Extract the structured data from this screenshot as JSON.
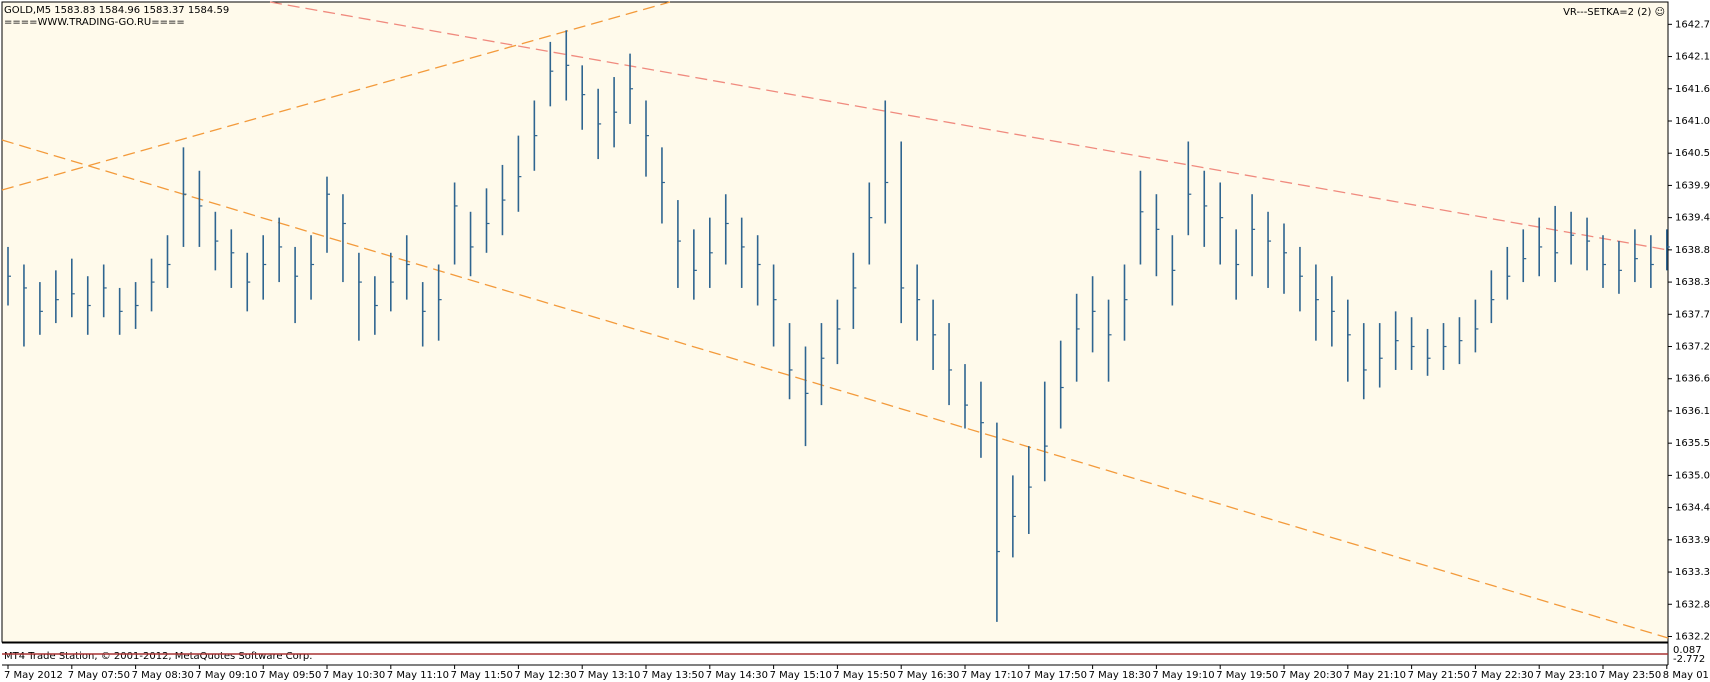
{
  "header": {
    "symbol_line": "GOLD,M5  1583.83 1584.96 1583.37 1584.59",
    "site": "====WWW.TRADING-GO.RU====",
    "indicator": "VR---SETKA=2 (2) ☺"
  },
  "footer": {
    "copyright": "MT4 Trade Station, © 2001-2012, MetaQuotes Software Corp.",
    "sub_top": "0.087",
    "sub_bottom": "-2.772"
  },
  "chart_data": {
    "type": "ohlc",
    "color": "#2f6590",
    "categories": [
      "7 May 2012",
      null,
      null,
      null,
      "7 May 07:50",
      null,
      null,
      null,
      "7 May 08:30",
      null,
      null,
      null,
      "7 May 09:10",
      null,
      null,
      null,
      "7 May 09:50",
      null,
      null,
      null,
      "7 May 10:30",
      null,
      null,
      null,
      "7 May 11:10",
      null,
      null,
      null,
      "7 May 11:50",
      null,
      null,
      null,
      "7 May 12:30",
      null,
      null,
      null,
      "7 May 13:10",
      null,
      null,
      null,
      "7 May 13:50",
      null,
      null,
      null,
      "7 May 14:30",
      null,
      null,
      null,
      "7 May 15:10",
      null,
      null,
      null,
      "7 May 15:50",
      null,
      null,
      null,
      "7 May 16:30",
      null,
      null,
      null,
      "7 May 17:10",
      null,
      null,
      null,
      "7 May 17:50",
      null,
      null,
      null,
      "7 May 18:30",
      null,
      null,
      null,
      "7 May 19:10",
      null,
      null,
      null,
      "7 May 19:50",
      null,
      null,
      null,
      "7 May 20:30",
      null,
      null,
      null,
      "7 May 21:10",
      null,
      null,
      null,
      "7 May 21:50",
      null,
      null,
      null,
      "7 May 22:30",
      null,
      null,
      null,
      "7 May 23:10",
      null,
      null,
      null,
      "7 May 23:50",
      null,
      null,
      null,
      "8 May 01:"
    ],
    "high": [
      1638.9,
      1638.6,
      1638.3,
      1638.5,
      1638.7,
      1638.4,
      1638.6,
      1638.2,
      1638.3,
      1638.7,
      1639.1,
      1640.6,
      1640.2,
      1639.5,
      1639.2,
      1638.8,
      1639.1,
      1639.4,
      1638.9,
      1639.1,
      1640.1,
      1639.8,
      1638.8,
      1638.4,
      1638.8,
      1639.1,
      1638.3,
      1638.6,
      1640.0,
      1639.5,
      1639.9,
      1640.3,
      1640.8,
      1641.4,
      1642.4,
      1642.6,
      1642.0,
      1641.6,
      1641.8,
      1642.2,
      1641.4,
      1640.6,
      1639.7,
      1639.2,
      1639.4,
      1639.8,
      1639.4,
      1639.1,
      1638.6,
      1637.6,
      1637.2,
      1637.6,
      1638.0,
      1638.8,
      1640.0,
      1641.4,
      1640.7,
      1638.6,
      1638.0,
      1637.6,
      1636.9,
      1636.6,
      1635.9,
      1635.0,
      1635.5,
      1636.6,
      1637.3,
      1638.1,
      1638.4,
      1638.0,
      1638.6,
      1640.2,
      1639.8,
      1639.1,
      1640.7,
      1640.2,
      1640.0,
      1639.2,
      1639.8,
      1639.5,
      1639.3,
      1638.9,
      1638.6,
      1638.4,
      1638.0,
      1637.6,
      1637.6,
      1637.8,
      1637.7,
      1637.5,
      1637.6,
      1637.7,
      1638.0,
      1638.5,
      1638.9,
      1639.2,
      1639.4,
      1639.6,
      1639.5,
      1639.4,
      1639.1,
      1639.0,
      1639.2,
      1639.1,
      1639.2
    ],
    "low": [
      1637.9,
      1637.2,
      1637.4,
      1637.6,
      1637.7,
      1637.4,
      1637.7,
      1637.4,
      1637.5,
      1637.8,
      1638.2,
      1638.9,
      1638.9,
      1638.5,
      1638.2,
      1637.8,
      1638.0,
      1638.3,
      1637.6,
      1638.0,
      1638.8,
      1638.3,
      1637.3,
      1637.4,
      1637.8,
      1638.0,
      1637.2,
      1637.3,
      1638.6,
      1638.4,
      1638.8,
      1639.1,
      1639.5,
      1640.2,
      1641.3,
      1641.4,
      1640.9,
      1640.4,
      1640.6,
      1641.0,
      1640.1,
      1639.3,
      1638.2,
      1638.0,
      1638.2,
      1638.6,
      1638.2,
      1637.9,
      1637.2,
      1636.3,
      1635.5,
      1636.2,
      1636.9,
      1637.5,
      1638.6,
      1639.3,
      1637.6,
      1637.3,
      1636.8,
      1636.2,
      1635.8,
      1635.3,
      1632.5,
      1633.6,
      1634.0,
      1634.9,
      1635.8,
      1636.6,
      1637.1,
      1636.6,
      1637.3,
      1638.6,
      1638.4,
      1637.9,
      1639.1,
      1638.9,
      1638.6,
      1638.0,
      1638.4,
      1638.2,
      1638.1,
      1637.8,
      1637.3,
      1637.2,
      1636.6,
      1636.3,
      1636.5,
      1636.8,
      1636.8,
      1636.7,
      1636.8,
      1636.9,
      1637.1,
      1637.6,
      1638.0,
      1638.3,
      1638.4,
      1638.3,
      1638.6,
      1638.5,
      1638.2,
      1638.1,
      1638.3,
      1638.2,
      1638.5
    ],
    "close": [
      1638.4,
      1638.2,
      1637.8,
      1638.0,
      1638.1,
      1637.9,
      1638.2,
      1637.8,
      1637.9,
      1638.3,
      1638.6,
      1639.8,
      1639.6,
      1639.0,
      1638.8,
      1638.3,
      1638.6,
      1638.9,
      1638.4,
      1638.6,
      1639.8,
      1639.3,
      1638.3,
      1637.9,
      1638.3,
      1638.6,
      1637.8,
      1638.0,
      1639.6,
      1638.9,
      1639.3,
      1639.7,
      1640.1,
      1640.8,
      1641.9,
      1642.0,
      1641.5,
      1641.0,
      1641.2,
      1641.6,
      1640.8,
      1640.0,
      1639.0,
      1638.5,
      1638.8,
      1639.3,
      1638.9,
      1638.6,
      1638.0,
      1636.8,
      1636.4,
      1637.0,
      1637.5,
      1638.2,
      1639.4,
      1640.0,
      1638.2,
      1638.0,
      1637.4,
      1636.8,
      1636.2,
      1635.9,
      1633.7,
      1634.3,
      1634.8,
      1635.5,
      1636.5,
      1637.5,
      1637.8,
      1637.4,
      1638.0,
      1639.5,
      1639.2,
      1638.5,
      1639.8,
      1639.6,
      1639.4,
      1638.6,
      1639.2,
      1639.0,
      1638.8,
      1638.4,
      1638.0,
      1637.8,
      1637.4,
      1636.8,
      1637.0,
      1637.3,
      1637.2,
      1637.0,
      1637.2,
      1637.3,
      1637.5,
      1638.0,
      1638.4,
      1638.7,
      1638.9,
      1638.8,
      1639.1,
      1639.0,
      1638.6,
      1638.5,
      1638.7,
      1638.6,
      1638.9
    ],
    "ylim": [
      1632.19,
      1643.03
    ],
    "yticks": [
      {
        "value": 1642.7,
        "label": "1642.70"
      },
      {
        "value": 1642.15,
        "label": "1642.15"
      },
      {
        "value": 1641.6,
        "label": "1641.60"
      },
      {
        "value": 1641.05,
        "label": "1641.05"
      },
      {
        "value": 1640.5,
        "label": "1640.50"
      },
      {
        "value": 1639.95,
        "label": "1639.95"
      },
      {
        "value": 1639.4,
        "label": "1639.40"
      },
      {
        "value": 1638.85,
        "label": "1638.85"
      },
      {
        "value": 1638.3,
        "label": "1638.30"
      },
      {
        "value": 1637.75,
        "label": "1637.75"
      },
      {
        "value": 1637.2,
        "label": "1637.20"
      },
      {
        "value": 1636.65,
        "label": "1636.65"
      },
      {
        "value": 1636.1,
        "label": "1636.10"
      },
      {
        "value": 1635.55,
        "label": "1635.55"
      },
      {
        "value": 1635,
        "label": "1635.00"
      },
      {
        "value": 1634.45,
        "label": "1634.45"
      },
      {
        "value": 1633.9,
        "label": "1633.90"
      },
      {
        "value": 1633.35,
        "label": "1633.35"
      },
      {
        "value": 1632.8,
        "label": "1632.80"
      },
      {
        "value": 1632.25,
        "label": "1632.25"
      }
    ]
  }
}
